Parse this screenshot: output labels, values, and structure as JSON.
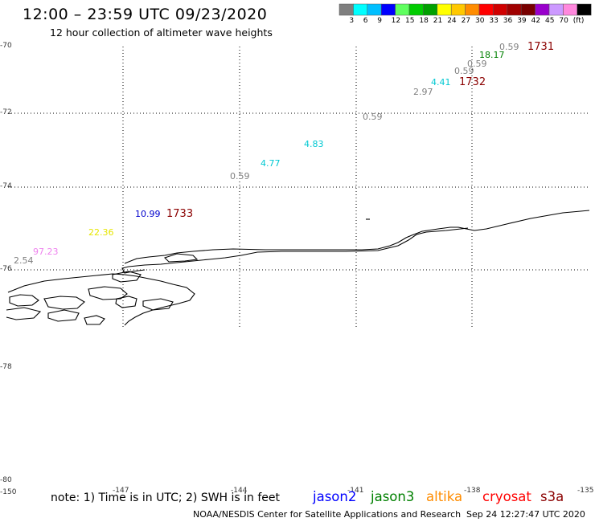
{
  "header": {
    "title": "12:00 – 23:59 UTC 09/23/2020",
    "subtitle": "12 hour collection of altimeter wave heights"
  },
  "colorbar": {
    "colors": [
      "#7f7f7f",
      "#00ffff",
      "#00bfff",
      "#0000ff",
      "#5fff5f",
      "#00cc00",
      "#00a000",
      "#ffff00",
      "#ffc800",
      "#ff8c00",
      "#ff0000",
      "#d00000",
      "#a00000",
      "#780000",
      "#9900cc",
      "#cc99ff",
      "#ff88dd",
      "#000000"
    ],
    "labels": [
      "3",
      "6",
      "9",
      "12",
      "15",
      "18",
      "21",
      "24",
      "27",
      "30",
      "33",
      "36",
      "39",
      "42",
      "45",
      "70",
      "(ft)"
    ]
  },
  "axes": {
    "lat_labels": [
      "-70",
      "-72",
      "-74",
      "-76",
      "-78",
      "-80"
    ],
    "lon_labels": [
      "-150",
      "-147",
      "-144",
      "-141",
      "-138",
      "-135"
    ]
  },
  "observations": [
    {
      "text": "0.59",
      "color": "#808080"
    },
    {
      "text": "1731",
      "color": "#8b0000"
    },
    {
      "text": "18.17",
      "color": "#008000"
    },
    {
      "text": "0.59",
      "color": "#808080"
    },
    {
      "text": "0.59",
      "color": "#808080"
    },
    {
      "text": "4.41",
      "color": "#00c8d2"
    },
    {
      "text": "1732",
      "color": "#8b0000"
    },
    {
      "text": "2.97",
      "color": "#808080"
    },
    {
      "text": "0.59",
      "color": "#808080"
    },
    {
      "text": "4.83",
      "color": "#00c8d2"
    },
    {
      "text": "4.77",
      "color": "#00c8d2"
    },
    {
      "text": "0.59",
      "color": "#808080"
    },
    {
      "text": "10.99",
      "color": "#0000cc"
    },
    {
      "text": "1733",
      "color": "#8b0000"
    },
    {
      "text": "22.36",
      "color": "#e6e600"
    },
    {
      "text": "97.23",
      "color": "#ee82ee"
    },
    {
      "text": "2.54",
      "color": "#808080"
    }
  ],
  "footer": {
    "note": "note: 1) Time is in UTC; 2) SWH is in feet",
    "satellites": [
      {
        "name": "jason2",
        "color": "#0000ff"
      },
      {
        "name": "jason3",
        "color": "#008000"
      },
      {
        "name": "altika",
        "color": "#ff8c00"
      },
      {
        "name": "cryosat",
        "color": "#ff0000"
      },
      {
        "name": "s3a",
        "color": "#8b0000"
      }
    ],
    "credit": "NOAA/NESDIS Center for Satellite Applications and Research",
    "timestamp": "Sep 24 12:27:47 UTC 2020"
  }
}
